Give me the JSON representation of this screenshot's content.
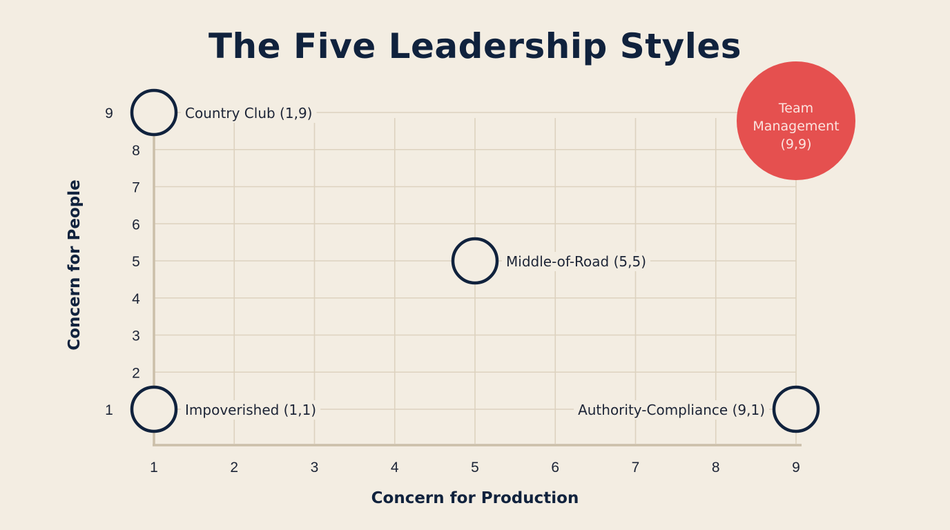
{
  "chart_data": {
    "type": "scatter",
    "title": "The Five Leadership Styles",
    "xlabel": "Concern for Production",
    "ylabel": "Concern for People",
    "xlim": [
      1,
      9
    ],
    "ylim": [
      1,
      9
    ],
    "x_ticks": [
      "1",
      "2",
      "3",
      "4",
      "5",
      "6",
      "7",
      "8",
      "9"
    ],
    "y_ticks": [
      "1",
      "2",
      "3",
      "4",
      "5",
      "6",
      "7",
      "8",
      "9"
    ],
    "grid": true,
    "colors": {
      "grid": "#ddd2bf",
      "axis": "#cbbfa9",
      "marker": "#10223d",
      "highlight": "#e5504f",
      "background": "#f3ede2"
    },
    "points": [
      {
        "label": "Country Club (1,9)",
        "x": 1,
        "y": 9,
        "highlight": false
      },
      {
        "label": "Impoverished (1,1)",
        "x": 1,
        "y": 1,
        "highlight": false
      },
      {
        "label": "Middle-of-Road (5,5)",
        "x": 5,
        "y": 5,
        "highlight": false
      },
      {
        "label": "Authority-Compliance (9,1)",
        "x": 9,
        "y": 1,
        "highlight": false
      },
      {
        "label_lines": [
          "Team",
          "Management",
          "(9,9)"
        ],
        "x": 9,
        "y": 9,
        "highlight": true
      }
    ]
  }
}
